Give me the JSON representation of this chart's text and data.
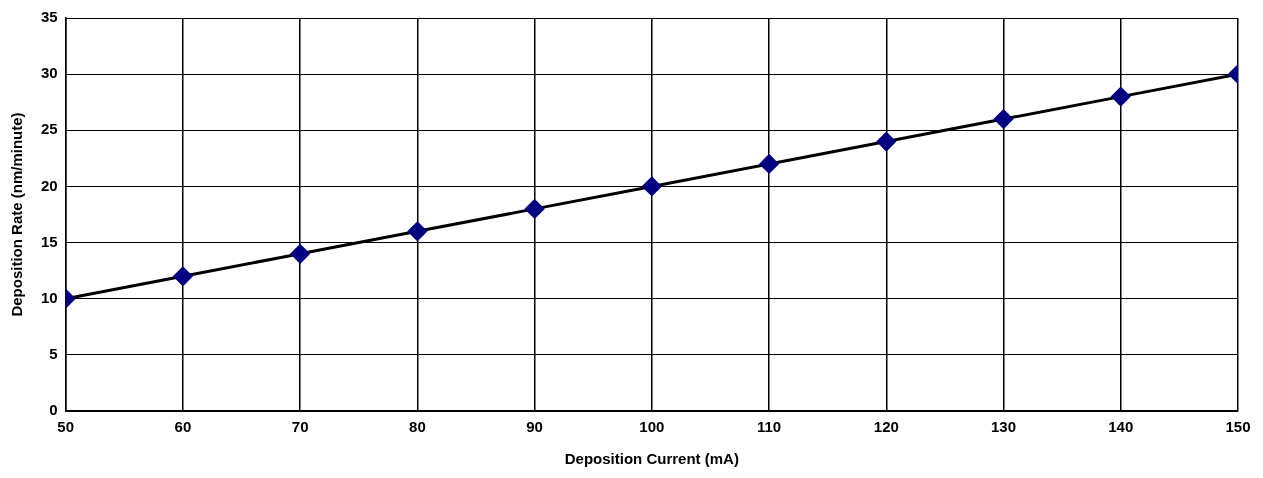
{
  "chart_data": {
    "type": "line",
    "xlabel": "Deposition Current (mA)",
    "ylabel": "Deposition Rate (nm/minute)",
    "x": [
      50,
      60,
      70,
      80,
      90,
      100,
      110,
      120,
      130,
      140,
      150
    ],
    "series": [
      {
        "color": "#000080",
        "values": [
          10,
          12,
          14,
          16,
          18,
          20,
          22,
          24,
          26,
          28,
          30
        ]
      }
    ],
    "xlim": [
      50,
      150
    ],
    "xticks": [
      50,
      60,
      70,
      80,
      90,
      100,
      110,
      120,
      130,
      140,
      150
    ],
    "ylim": [
      0,
      35
    ],
    "yticks": [
      0,
      5,
      10,
      15,
      20,
      25,
      30,
      35
    ],
    "grid": true,
    "legend": false,
    "marker": "diamond",
    "line_style": "solid"
  }
}
